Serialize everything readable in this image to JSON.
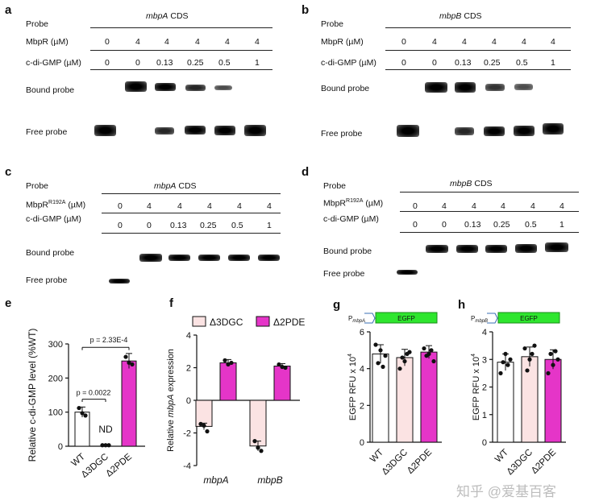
{
  "panels": {
    "a": "a",
    "b": "b",
    "c": "c",
    "d": "d",
    "e": "e",
    "f": "f",
    "g": "g",
    "h": "h"
  },
  "gel_common": {
    "probe": "Probe",
    "cds": "CDS",
    "mbpr": "MbpR (µM)",
    "mbpr_r192a": "MbpR",
    "mbpr_sup": "R192A",
    "mbpr_unit": "(µM)",
    "cdig": "c-di-GMP (µM)",
    "bound": "Bound probe",
    "free": "Free probe"
  },
  "gel_a": {
    "gene": "mbpA",
    "mbpr": [
      "0",
      "4",
      "4",
      "4",
      "4",
      "4"
    ],
    "cdig": [
      "0",
      "0",
      "0.13",
      "0.25",
      "0.5",
      "1"
    ]
  },
  "gel_b": {
    "gene": "mbpB",
    "mbpr": [
      "0",
      "4",
      "4",
      "4",
      "4",
      "4"
    ],
    "cdig": [
      "0",
      "0",
      "0.13",
      "0.25",
      "0.5",
      "1"
    ]
  },
  "gel_c": {
    "gene": "mbpA",
    "mbpr": [
      "0",
      "4",
      "4",
      "4",
      "4",
      "4"
    ],
    "cdig": [
      "0",
      "0",
      "0.13",
      "0.25",
      "0.5",
      "1"
    ]
  },
  "gel_d": {
    "gene": "mbpB",
    "mbpr": [
      "0",
      "4",
      "4",
      "4",
      "4",
      "4"
    ],
    "cdig": [
      "0",
      "0",
      "0.13",
      "0.25",
      "0.5",
      "1"
    ]
  },
  "colors": {
    "pink_light": "#fbe3e3",
    "magenta": "#e535c8",
    "egfp_green": "#2ee62e"
  },
  "chart_data": [
    {
      "panel": "e",
      "type": "bar",
      "categories": [
        "WT",
        "Δ3DGC",
        "Δ2PDE"
      ],
      "values": [
        100,
        3,
        250
      ],
      "errors": [
        15,
        0,
        22
      ],
      "points": [
        [
          112,
          97,
          90
        ],
        [
          3,
          3,
          3
        ],
        [
          262,
          245,
          240
        ]
      ],
      "ylabel": "Relative c-di-GMP level (%WT)",
      "yticks": [
        "0",
        "100",
        "200",
        "300"
      ],
      "ylim": [
        0,
        300
      ],
      "annotations": [
        "p = 0.0022",
        "p = 2.33E-4",
        "ND"
      ]
    },
    {
      "panel": "f",
      "type": "bar",
      "categories": [
        "mbpA",
        "mbpB"
      ],
      "ylabel_pre": "Relative ",
      "ylabel_gene": "mbpA",
      "ylabel_post": " expression",
      "ylim": [
        -4,
        4
      ],
      "yticks": [
        "-4",
        "-2",
        "0",
        "2",
        "4"
      ],
      "series": [
        {
          "name": "Δ3DGC",
          "values": [
            -1.6,
            -2.8
          ],
          "errors": [
            0.2,
            0.3
          ],
          "points": [
            [
              -1.45,
              -1.55,
              -1.9
            ],
            [
              -2.5,
              -2.9,
              -3.1
            ]
          ]
        },
        {
          "name": "Δ2PDE",
          "values": [
            2.3,
            2.1
          ],
          "errors": [
            0.2,
            0.15
          ],
          "points": [
            [
              2.45,
              2.2,
              2.3
            ],
            [
              2.2,
              2.05,
              2.0
            ]
          ]
        }
      ]
    },
    {
      "panel": "g",
      "type": "bar",
      "categories": [
        "WT",
        "Δ3DGC",
        "Δ2PDE"
      ],
      "values": [
        4.8,
        4.6,
        4.9
      ],
      "errors": [
        0.5,
        0.45,
        0.35
      ],
      "points": [
        [
          5.3,
          4.3,
          5.0,
          4.1,
          4.7
        ],
        [
          4.0,
          4.6,
          4.4,
          4.8,
          4.9
        ],
        [
          5.1,
          4.7,
          4.8,
          5.0,
          4.4
        ]
      ],
      "ylabel": "EGFP RFU x 10",
      "ylabel_exp": "4",
      "ylim": [
        0,
        6
      ],
      "yticks": [
        "0",
        "2",
        "4",
        "6"
      ],
      "construct": "P",
      "construct_gene": "mbpA",
      "egfp": "EGFP"
    },
    {
      "panel": "h",
      "type": "bar",
      "categories": [
        "WT",
        "Δ3DGC",
        "Δ2PDE"
      ],
      "values": [
        2.9,
        3.1,
        3.0
      ],
      "errors": [
        0.3,
        0.35,
        0.35
      ],
      "points": [
        [
          2.5,
          2.9,
          3.2,
          2.8,
          3.0
        ],
        [
          3.4,
          2.6,
          3.0,
          3.2,
          3.5
        ],
        [
          2.5,
          3.2,
          2.8,
          3.3,
          3.0
        ]
      ],
      "ylabel": "EGFP RFU x 10",
      "ylabel_exp": "4",
      "ylim": [
        0,
        4
      ],
      "yticks": [
        "0",
        "1",
        "2",
        "3",
        "4"
      ],
      "construct": "P",
      "construct_gene": "mbpB",
      "egfp": "EGFP"
    }
  ],
  "watermark": "知乎 @爱基百客"
}
